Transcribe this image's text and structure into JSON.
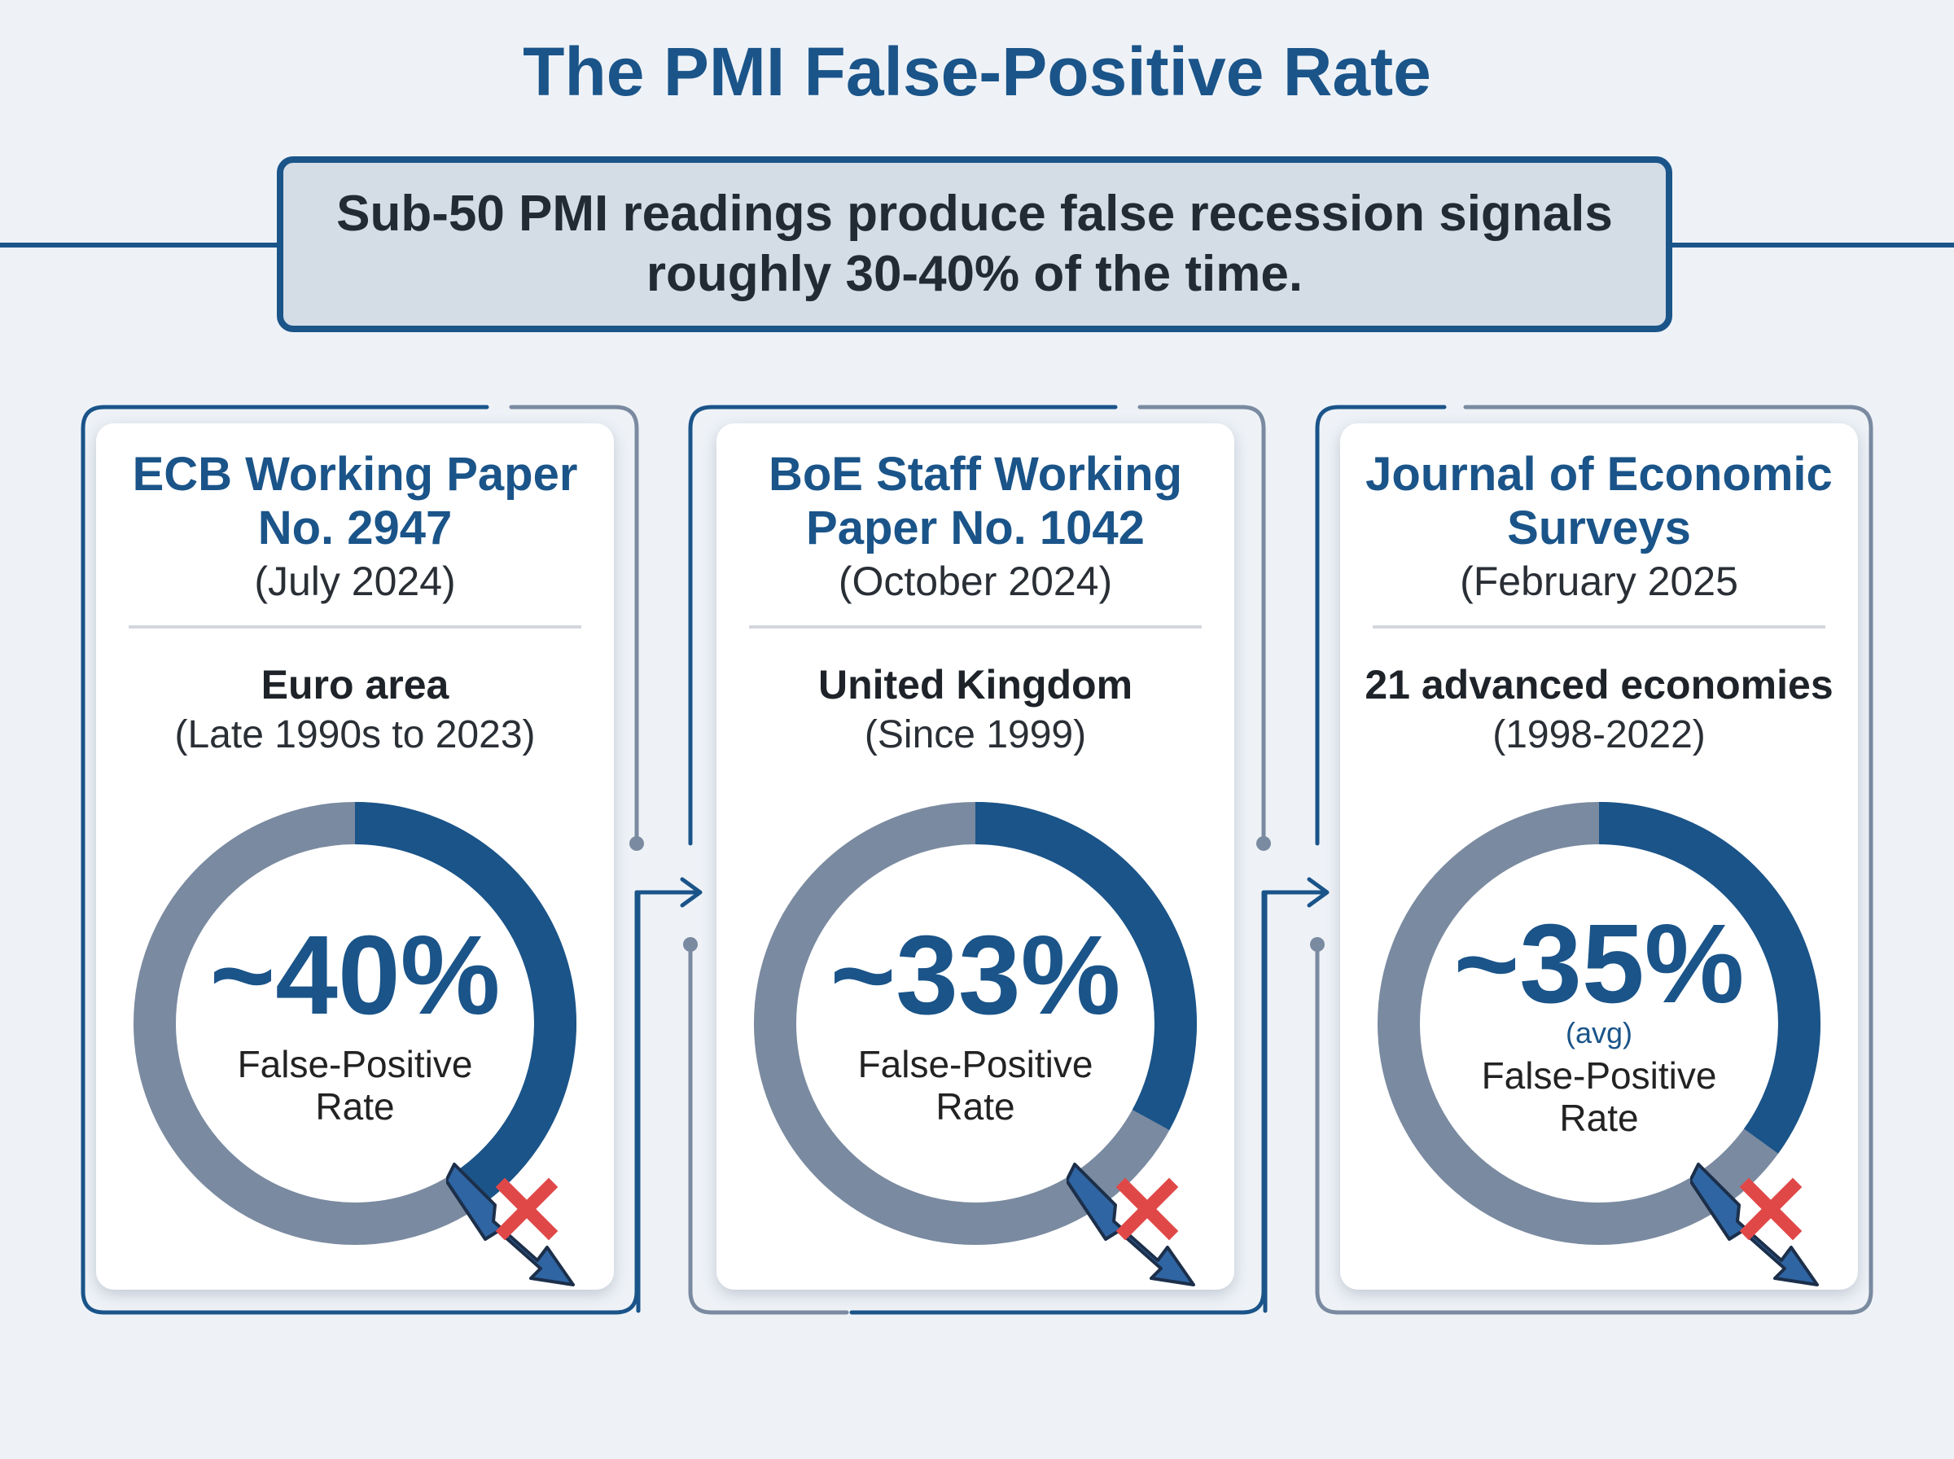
{
  "title": "The PMI False-Positive Rate",
  "summary": {
    "line1": "Sub-50 PMI readings produce false recession signals",
    "line2": "roughly 30-40% of the time."
  },
  "colors": {
    "accent": "#1a5489",
    "ring_remainder": "#7a8aa0",
    "frame": "#7a8aa0",
    "cross": "#e04848"
  },
  "icons": [
    "down-trend-arrow-icon",
    "cross-icon",
    "flow-arrow-icon"
  ],
  "cards": [
    {
      "title_line1": "ECB Working Paper",
      "title_line2": "No. 2947",
      "date": "(July 2024)",
      "region": "Euro area",
      "period": "(Late 1990s to 2023)",
      "value": "~40%",
      "note": "",
      "label_line1": "False-Positive",
      "label_line2": "Rate",
      "ring_fraction": 0.4
    },
    {
      "title_line1": "BoE Staff Working",
      "title_line2": "Paper No. 1042",
      "date": "(October 2024)",
      "region": "United Kingdom",
      "period": "(Since 1999)",
      "value": "~33%",
      "note": "",
      "label_line1": "False-Positive",
      "label_line2": "Rate",
      "ring_fraction": 0.33
    },
    {
      "title_line1": "Journal of Economic",
      "title_line2": "Surveys",
      "date": "(February 2025",
      "region": "21 advanced economies",
      "period": "(1998-2022)",
      "value": "~35%",
      "note": "(avg)",
      "label_line1": "False-Positive",
      "label_line2": "Rate",
      "ring_fraction": 0.35
    }
  ]
}
